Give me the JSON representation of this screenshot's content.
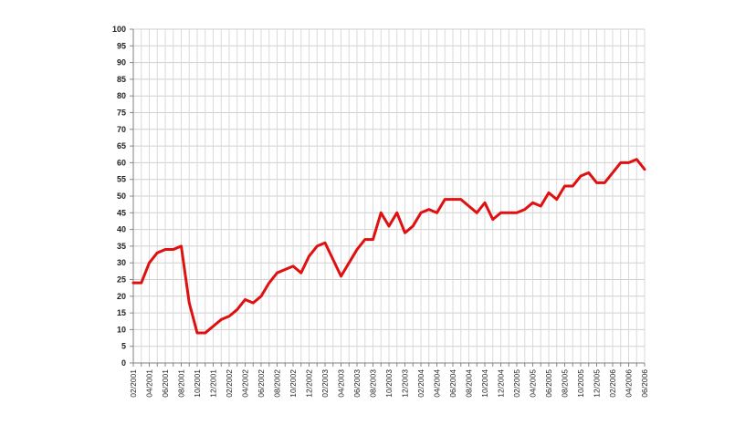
{
  "chart_data": {
    "type": "line",
    "title": "",
    "xlabel": "",
    "ylabel": "",
    "ylim": [
      0,
      100
    ],
    "yticks": [
      0,
      5,
      10,
      15,
      20,
      25,
      30,
      35,
      40,
      45,
      50,
      55,
      60,
      65,
      70,
      75,
      80,
      85,
      90,
      95,
      100
    ],
    "grid": true,
    "legend": "none",
    "line_color": "#e01010",
    "x_tick_labels": [
      "02/2001",
      "04/2001",
      "06/2001",
      "08/2001",
      "10/2001",
      "12/2001",
      "02/2002",
      "04/2002",
      "06/2002",
      "08/2002",
      "10/2002",
      "12/2002",
      "02/2003",
      "04/2003",
      "06/2003",
      "08/2003",
      "10/2003",
      "12/2003",
      "02/2004",
      "04/2004",
      "06/2004",
      "08/2004",
      "10/2004",
      "12/2004",
      "02/2005",
      "04/2005",
      "06/2005",
      "08/2005",
      "10/2005",
      "12/2005",
      "02/2006",
      "04/2006",
      "06/2006"
    ],
    "x": [
      "02/2001",
      "03/2001",
      "04/2001",
      "05/2001",
      "06/2001",
      "07/2001",
      "08/2001",
      "09/2001",
      "10/2001",
      "11/2001",
      "12/2001",
      "01/2002",
      "02/2002",
      "03/2002",
      "04/2002",
      "05/2002",
      "06/2002",
      "07/2002",
      "08/2002",
      "09/2002",
      "10/2002",
      "11/2002",
      "12/2002",
      "01/2003",
      "02/2003",
      "03/2003",
      "04/2003",
      "05/2003",
      "06/2003",
      "07/2003",
      "08/2003",
      "09/2003",
      "10/2003",
      "11/2003",
      "12/2003",
      "01/2004",
      "02/2004",
      "03/2004",
      "04/2004",
      "05/2004",
      "06/2004",
      "07/2004",
      "08/2004",
      "09/2004",
      "10/2004",
      "11/2004",
      "12/2004",
      "01/2005",
      "02/2005",
      "03/2005",
      "04/2005",
      "05/2005",
      "06/2005",
      "07/2005",
      "08/2005",
      "09/2005",
      "10/2005",
      "11/2005",
      "12/2005",
      "01/2006",
      "02/2006",
      "03/2006",
      "04/2006",
      "05/2006",
      "06/2006"
    ],
    "series": [
      {
        "values": [
          24,
          24,
          30,
          33,
          34,
          34,
          35,
          18,
          9,
          9,
          11,
          13,
          14,
          16,
          19,
          18,
          20,
          24,
          27,
          28,
          29,
          27,
          32,
          35,
          36,
          31,
          26,
          30,
          34,
          37,
          37,
          45,
          41,
          45,
          39,
          41,
          45,
          46,
          45,
          49,
          49,
          49,
          47,
          45,
          48,
          43,
          45,
          45,
          45,
          46,
          48,
          47,
          51,
          49,
          53,
          53,
          56,
          57,
          54,
          54,
          57,
          60,
          60,
          61,
          58
        ]
      }
    ]
  }
}
